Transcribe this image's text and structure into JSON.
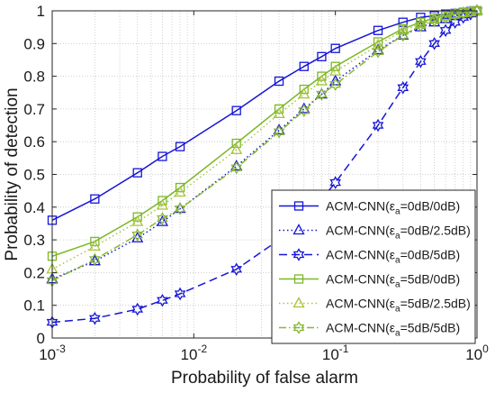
{
  "chart_data": {
    "type": "line",
    "title": "",
    "xlabel": "Probability of false alarm",
    "ylabel": "Probability of detection",
    "xscale": "log",
    "xlim": [
      0.001,
      1
    ],
    "ylim": [
      0,
      1
    ],
    "grid": true,
    "legend_position": "bottom-right",
    "x_ticks": [
      {
        "value": 0.001,
        "base": "10",
        "exp": "-3"
      },
      {
        "value": 0.01,
        "base": "10",
        "exp": "-2"
      },
      {
        "value": 0.1,
        "base": "10",
        "exp": "-1"
      },
      {
        "value": 1,
        "base": "10",
        "exp": "0"
      }
    ],
    "y_ticks": [
      {
        "value": 0,
        "label": "0"
      },
      {
        "value": 0.1,
        "label": "0.1"
      },
      {
        "value": 0.2,
        "label": "0.2"
      },
      {
        "value": 0.3,
        "label": "0.3"
      },
      {
        "value": 0.4,
        "label": "0.4"
      },
      {
        "value": 0.5,
        "label": "0.5"
      },
      {
        "value": 0.6,
        "label": "0.6"
      },
      {
        "value": 0.7,
        "label": "0.7"
      },
      {
        "value": 0.8,
        "label": "0.8"
      },
      {
        "value": 0.9,
        "label": "0.9"
      },
      {
        "value": 1,
        "label": "1"
      }
    ],
    "series": [
      {
        "name": "ACM-CNN(εa=0dB/0dB)",
        "legend": {
          "prefix": "ACM-CNN(ε",
          "sub": "a",
          "suffix": "=0dB/0dB)"
        },
        "color": "#1515d8",
        "dash": "solid",
        "marker": "square",
        "x": [
          0.001,
          0.002,
          0.004,
          0.006,
          0.008,
          0.02,
          0.04,
          0.06,
          0.08,
          0.1,
          0.2,
          0.3,
          0.4,
          0.5,
          0.6,
          0.7,
          0.8,
          0.9,
          1.0
        ],
        "y": [
          0.36,
          0.425,
          0.505,
          0.555,
          0.585,
          0.695,
          0.785,
          0.83,
          0.86,
          0.885,
          0.94,
          0.965,
          0.98,
          0.985,
          0.99,
          0.992,
          0.995,
          0.998,
          1.0
        ]
      },
      {
        "name": "ACM-CNN(εa=0dB/2.5dB)",
        "legend": {
          "prefix": "ACM-CNN(ε",
          "sub": "a",
          "suffix": "=0dB/2.5dB)"
        },
        "color": "#1515d8",
        "dash": "dotted",
        "marker": "triangle",
        "x": [
          0.001,
          0.002,
          0.004,
          0.006,
          0.008,
          0.02,
          0.04,
          0.06,
          0.08,
          0.1,
          0.2,
          0.3,
          0.4,
          0.5,
          0.6,
          0.7,
          0.8,
          0.9,
          1.0
        ],
        "y": [
          0.18,
          0.235,
          0.305,
          0.355,
          0.395,
          0.525,
          0.635,
          0.7,
          0.745,
          0.785,
          0.88,
          0.925,
          0.95,
          0.965,
          0.975,
          0.985,
          0.99,
          0.995,
          1.0
        ]
      },
      {
        "name": "ACM-CNN(εa=0dB/5dB)",
        "legend": {
          "prefix": "ACM-CNN(ε",
          "sub": "a",
          "suffix": "=0dB/5dB)"
        },
        "color": "#1515d8",
        "dash": "dashed",
        "marker": "hexagram",
        "x": [
          0.001,
          0.002,
          0.004,
          0.006,
          0.008,
          0.02,
          0.04,
          0.06,
          0.08,
          0.1,
          0.2,
          0.3,
          0.4,
          0.5,
          0.6,
          0.7,
          0.8,
          0.9,
          1.0
        ],
        "y": [
          0.048,
          0.06,
          0.088,
          0.115,
          0.135,
          0.21,
          0.3,
          0.37,
          0.425,
          0.475,
          0.65,
          0.765,
          0.845,
          0.9,
          0.94,
          0.965,
          0.98,
          0.99,
          1.0
        ]
      },
      {
        "name": "ACM-CNN(εa=5dB/0dB)",
        "legend": {
          "prefix": "ACM-CNN(ε",
          "sub": "a",
          "suffix": "=5dB/0dB)"
        },
        "color": "#7ab828",
        "dash": "solid",
        "marker": "square",
        "x": [
          0.001,
          0.002,
          0.004,
          0.006,
          0.008,
          0.02,
          0.04,
          0.06,
          0.08,
          0.1,
          0.2,
          0.3,
          0.4,
          0.5,
          0.6,
          0.7,
          0.8,
          0.9,
          1.0
        ],
        "y": [
          0.25,
          0.295,
          0.37,
          0.42,
          0.46,
          0.595,
          0.7,
          0.76,
          0.8,
          0.83,
          0.905,
          0.945,
          0.965,
          0.978,
          0.985,
          0.99,
          0.994,
          0.997,
          1.0
        ]
      },
      {
        "name": "ACM-CNN(εa=5dB/2.5dB)",
        "legend": {
          "prefix": "ACM-CNN(ε",
          "sub": "a",
          "suffix": "=5dB/2.5dB)"
        },
        "color": "#a8c33a",
        "dash": "dotted",
        "marker": "triangle",
        "x": [
          0.001,
          0.002,
          0.004,
          0.006,
          0.008,
          0.02,
          0.04,
          0.06,
          0.08,
          0.1,
          0.2,
          0.3,
          0.4,
          0.5,
          0.6,
          0.7,
          0.8,
          0.9,
          1.0
        ],
        "y": [
          0.21,
          0.28,
          0.355,
          0.405,
          0.445,
          0.575,
          0.685,
          0.745,
          0.785,
          0.815,
          0.895,
          0.94,
          0.96,
          0.975,
          0.984,
          0.99,
          0.994,
          0.997,
          1.0
        ]
      },
      {
        "name": "ACM-CNN(εa=5dB/5dB)",
        "legend": {
          "prefix": "ACM-CNN(ε",
          "sub": "a",
          "suffix": "=5dB/5dB)"
        },
        "color": "#86b832",
        "dash": "dashdot",
        "marker": "hexagram",
        "x": [
          0.001,
          0.002,
          0.004,
          0.006,
          0.008,
          0.02,
          0.04,
          0.06,
          0.08,
          0.1,
          0.2,
          0.3,
          0.4,
          0.5,
          0.6,
          0.7,
          0.8,
          0.9,
          1.0
        ],
        "y": [
          0.175,
          0.24,
          0.315,
          0.365,
          0.395,
          0.52,
          0.63,
          0.695,
          0.745,
          0.775,
          0.875,
          0.925,
          0.955,
          0.97,
          0.98,
          0.988,
          0.993,
          0.997,
          1.0
        ]
      }
    ]
  }
}
